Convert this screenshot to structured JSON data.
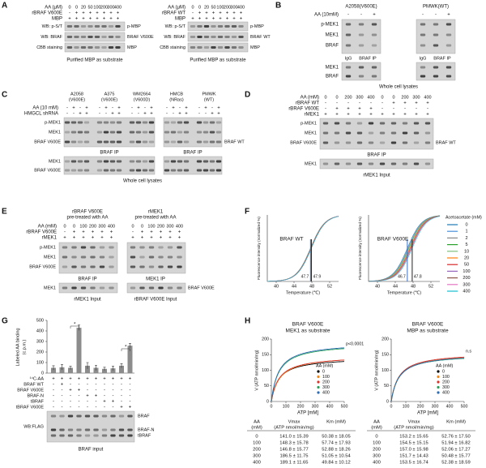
{
  "A": {
    "label": "A",
    "blots": [
      {
        "conc_label": "AA (μM)",
        "concs": [
          0,
          0,
          20,
          50,
          100,
          200,
          300,
          400
        ],
        "rows": [
          {
            "name": "rBRAF V600E",
            "signs": [
              "-",
              "+",
              "+",
              "+",
              "+",
              "+",
              "+",
              "+"
            ]
          },
          {
            "name": "MBP",
            "signs": [
              "+",
              "+",
              "+",
              "+",
              "+",
              "+",
              "+",
              "+"
            ]
          }
        ],
        "bands": [
          {
            "left": "WB: p-S/T",
            "right": "p-MBP"
          },
          {
            "left": "WB: BRAF",
            "right": "BRAF V600E"
          },
          {
            "left": "CBB staining",
            "right": "MBP"
          }
        ],
        "caption": "Purified MBP as substrate"
      },
      {
        "conc_label": "AA (μM)",
        "concs": [
          0,
          0,
          20,
          50,
          100,
          200,
          300,
          400
        ],
        "rows": [
          {
            "name": "rBRAF WT",
            "signs": [
              "-",
              "+",
              "+",
              "+",
              "+",
              "+",
              "+",
              "+"
            ]
          },
          {
            "name": "MBP",
            "signs": [
              "+",
              "+",
              "+",
              "+",
              "+",
              "+",
              "+",
              "+"
            ]
          }
        ],
        "bands": [
          {
            "left": "WB: p-S/T",
            "right": "p-MBP"
          },
          {
            "left": "WB: BRAF",
            "right": "BRAF WT"
          },
          {
            "left": "CBB staining",
            "right": "MBP"
          }
        ],
        "caption": "Purified MBP as substrate"
      }
    ]
  },
  "B": {
    "label": "B",
    "condition": "AA (10mM)",
    "groups": [
      {
        "name": "A2058(V600E)",
        "signs": [
          "-",
          "-",
          "+"
        ],
        "ip": [
          "IgG",
          "BRAF IP"
        ]
      },
      {
        "name": "PMWK(WT)",
        "signs": [
          "-",
          "-",
          "+"
        ],
        "ip": [
          "IgG",
          "BRAF IP"
        ]
      }
    ],
    "ip_bands": [
      "p-MEK1",
      "MEK1",
      "BRAF"
    ],
    "lysate_bands": [
      "MEK1",
      "BRAF"
    ],
    "caption": "Whole cell lysates"
  },
  "C": {
    "label": "C",
    "groups": [
      [
        "A2058",
        "(V600E)"
      ],
      [
        "A375",
        "(V600E)"
      ],
      [
        "WM2664",
        "(V600D)"
      ],
      [
        "HMCB",
        "(NRas)"
      ],
      [
        "PMWK",
        "(WT)"
      ]
    ],
    "rows": [
      {
        "name": "AA (10 mM)",
        "signs": [
          "-",
          "+",
          "-",
          "+",
          "-",
          "+",
          "-",
          "+",
          "-",
          "+",
          "-",
          "+",
          "-",
          "+",
          "-",
          "+",
          "-",
          "+",
          "-",
          "+"
        ]
      },
      {
        "name": "HMGCL shRNA",
        "signs": [
          "-",
          "-",
          "+",
          "+",
          "-",
          "-",
          "+",
          "+",
          "-",
          "-",
          "+",
          "+",
          "-",
          "-",
          "+",
          "+",
          "-",
          "-",
          "+",
          "+"
        ]
      }
    ],
    "ip_bands": [
      "p-MEK1",
      "MEK1",
      "BRAF V600E"
    ],
    "ip_right": "BRAF WT",
    "ip_captions": [
      "BRAF IP",
      "BRAF IP"
    ],
    "lysate_bands": [
      "MEK1",
      "BRAF V600E"
    ],
    "caption": "Whole cell lysates"
  },
  "D": {
    "label": "D",
    "conc_label": "AA (mM)",
    "concs": [
      0,
      0,
      200,
      300,
      400,
      0,
      0,
      200,
      300,
      400
    ],
    "rows": [
      {
        "name": "rBRAF WT",
        "signs": [
          "-",
          "-",
          "-",
          "-",
          "-",
          "-",
          "+",
          "+",
          "+",
          "+"
        ]
      },
      {
        "name": "rBRAF V600E",
        "signs": [
          "-",
          "+",
          "+",
          "+",
          "+",
          "-",
          "-",
          "-",
          "-",
          "-"
        ]
      },
      {
        "name": "rMEK1",
        "signs": [
          "+",
          "+",
          "+",
          "+",
          "+",
          "+",
          "+",
          "+",
          "+",
          "+"
        ]
      }
    ],
    "ip_bands": [
      "p-MEK1",
      "MEK1",
      "BRAF V600E"
    ],
    "ip_right": "BRAF WT",
    "ip_caption": "BRAF IP",
    "input_band": "MEK1",
    "input_caption": "rMEK1 Input"
  },
  "E": {
    "label": "E",
    "headers": [
      [
        "rBRAF V600E",
        "pre-treated with AA"
      ],
      [
        "rMEK1",
        "pre-treated with AA"
      ]
    ],
    "conc_label": "AA (mM)",
    "concs": [
      0,
      0,
      100,
      200,
      300,
      400,
      0,
      0,
      100,
      200,
      300,
      400
    ],
    "rows": [
      {
        "name": "rBRAF V600E",
        "signs": [
          "-",
          "+",
          "+",
          "+",
          "+",
          "+",
          "-",
          "+",
          "+",
          "+",
          "+",
          "+"
        ]
      },
      {
        "name": "rMEK1",
        "signs": [
          "+",
          "+",
          "+",
          "+",
          "+",
          "+",
          "+",
          "+",
          "+",
          "+",
          "+",
          "+"
        ]
      }
    ],
    "ip_bands": [
      "p-MEK1",
      "MEK1",
      "BRAF V600E"
    ],
    "ip_captions": [
      "BRAF IP",
      "MEK1 IP"
    ],
    "input_band": "MEK1",
    "input_right": "BRAF V600E",
    "input_captions": [
      "rMEK1 Input",
      "rBRAF V600E Input"
    ]
  },
  "F": {
    "label": "F",
    "type": "line",
    "xlim": [
      38,
      54
    ],
    "xticks": [
      40,
      44,
      48,
      52
    ],
    "plots": [
      {
        "title": "BRAF WT",
        "y_label": "Fluorescence intensity (normalized %)",
        "x_label": "Temperature (℃)",
        "tm": [
          {
            "value": 47.7,
            "color": "#3a6fc4"
          },
          {
            "value": 47.9,
            "color": "#222222"
          }
        ]
      },
      {
        "title": "BRAF V600E",
        "y_label": "Fluorescence intensity (normalized %)",
        "x_label": "Temperature (℃)",
        "tm": [
          {
            "value": 46.7,
            "color": "#3a6fc4"
          },
          {
            "value": 47.8,
            "color": "#222222"
          }
        ]
      }
    ],
    "legend_title": "Acetoacetate (mM)",
    "legend": [
      {
        "label": 0,
        "color": "#1f77b4"
      },
      {
        "label": 1,
        "color": "#4a90d9"
      },
      {
        "label": 2,
        "color": "#888888"
      },
      {
        "label": 5,
        "color": "#2ca02c"
      },
      {
        "label": 10,
        "color": "#7fbf7f"
      },
      {
        "label": 20,
        "color": "#ff7f0e"
      },
      {
        "label": 50,
        "color": "#d62728"
      },
      {
        "label": 100,
        "color": "#9467bd"
      },
      {
        "label": 200,
        "color": "#8c564b"
      },
      {
        "label": 300,
        "color": "#e377c2"
      },
      {
        "label": 400,
        "color": "#17becf"
      }
    ]
  },
  "G": {
    "label": "G",
    "type": "bar",
    "y_label": [
      "Labeled AA binding",
      "(c.p.m.)"
    ],
    "ylim": [
      0,
      500
    ],
    "yticks": [
      0,
      100,
      200,
      300,
      400,
      500
    ],
    "values": [
      50,
      55,
      50,
      430,
      70,
      50,
      40,
      45,
      70,
      260
    ],
    "errors": [
      20,
      25,
      15,
      25,
      30,
      25,
      15,
      20,
      20,
      20
    ],
    "color": "#8c8c8c",
    "significance": [
      "*",
      "*"
    ],
    "rows": [
      {
        "name": "¹⁴C-AA",
        "signs": [
          "+",
          "+",
          "+",
          "+",
          "+",
          "+",
          "+",
          "+",
          "+",
          "+"
        ]
      },
      {
        "name": "BRAF WT",
        "signs": [
          "-",
          "+",
          "-",
          "-",
          "-",
          "-",
          "-",
          "-",
          "-",
          "-"
        ]
      },
      {
        "name": "BRAF V600E",
        "signs": [
          "-",
          "-",
          "+",
          "+",
          "-",
          "-",
          "-",
          "-",
          "-",
          "-"
        ]
      },
      {
        "name": "BRAF-N",
        "signs": [
          "-",
          "-",
          "-",
          "-",
          "+",
          "+",
          "-",
          "-",
          "-",
          "-"
        ]
      },
      {
        "name": "tBRAF",
        "signs": [
          "-",
          "-",
          "-",
          "-",
          "-",
          "-",
          "+",
          "+",
          "-",
          "-"
        ]
      },
      {
        "name": "tBRAF V600E",
        "signs": [
          "-",
          "-",
          "-",
          "-",
          "-",
          "-",
          "-",
          "-",
          "+",
          "+"
        ]
      }
    ],
    "blot_label": "WB:FLAG",
    "band_labels": [
      "BRAF",
      "BRAF-N",
      "tBRAF"
    ],
    "caption": "BRAF input"
  },
  "H": {
    "label": "H",
    "xlim": [
      0,
      500
    ],
    "xticks": [
      0,
      100,
      200,
      300,
      400,
      500
    ],
    "ylim": [
      0,
      200
    ],
    "yticks": [
      0,
      50,
      100,
      150,
      200
    ],
    "colors": [
      "#000000",
      "#f08c1e",
      "#d9342b",
      "#2ca05a",
      "#2f6db5"
    ],
    "plots": [
      {
        "title": [
          "BRAF V600E",
          "MEK1 as substrate"
        ],
        "annotation": "p<0.0001",
        "y_label": "V (ATP nmol/min/mg)",
        "x_label": "ATP [mM]",
        "legend": {
          "title": "AA (mM)",
          "entries": [
            0,
            100,
            200,
            300,
            400
          ]
        },
        "table": {
          "header": [
            [
              "AA",
              "(mM)"
            ],
            [
              "Vmax",
              "(ATP nmol/min/mg)"
            ],
            [
              "Km (mM)"
            ]
          ],
          "rows": [
            [
              0,
              "141.0 ± 15.39",
              "50.38 ± 18.05"
            ],
            [
              100,
              "148.3 ± 15.78",
              "57.74 ± 17.93"
            ],
            [
              200,
              "146.8 ± 15.77",
              "52.88 ± 18.26"
            ],
            [
              300,
              "186.5 ± 11.75",
              "51.05 ± 10.54"
            ],
            [
              400,
              "189.1 ± 11.65",
              "49.84 ± 10.12"
            ]
          ]
        }
      },
      {
        "title": [
          "BRAF V600E",
          "MBP as substrate"
        ],
        "annotation": "n.s",
        "y_label": "V (ATP nmol/min/mg)",
        "x_label": "ATP [mM]",
        "legend": {
          "title": "AA (mM)",
          "entries": [
            0,
            100,
            200,
            300,
            400
          ]
        },
        "table": {
          "header": [
            [
              "AA",
              "(mM)"
            ],
            [
              "Vmax",
              "(ATP nmol/min/mg)"
            ],
            [
              "Km (mM)"
            ]
          ],
          "rows": [
            [
              0,
              "153.2 ± 15.65",
              "52.76 ± 17.50"
            ],
            [
              100,
              "154.5 ± 15.15",
              "51.94 ± 16.82"
            ],
            [
              200,
              "157.0 ± 15.98",
              "52.06 ± 17.27"
            ],
            [
              300,
              "151.7 ± 14.43",
              "50.48 ± 15.77"
            ],
            [
              400,
              "153.5 ± 16.74",
              "52.38 ± 18.59"
            ]
          ]
        }
      }
    ]
  }
}
